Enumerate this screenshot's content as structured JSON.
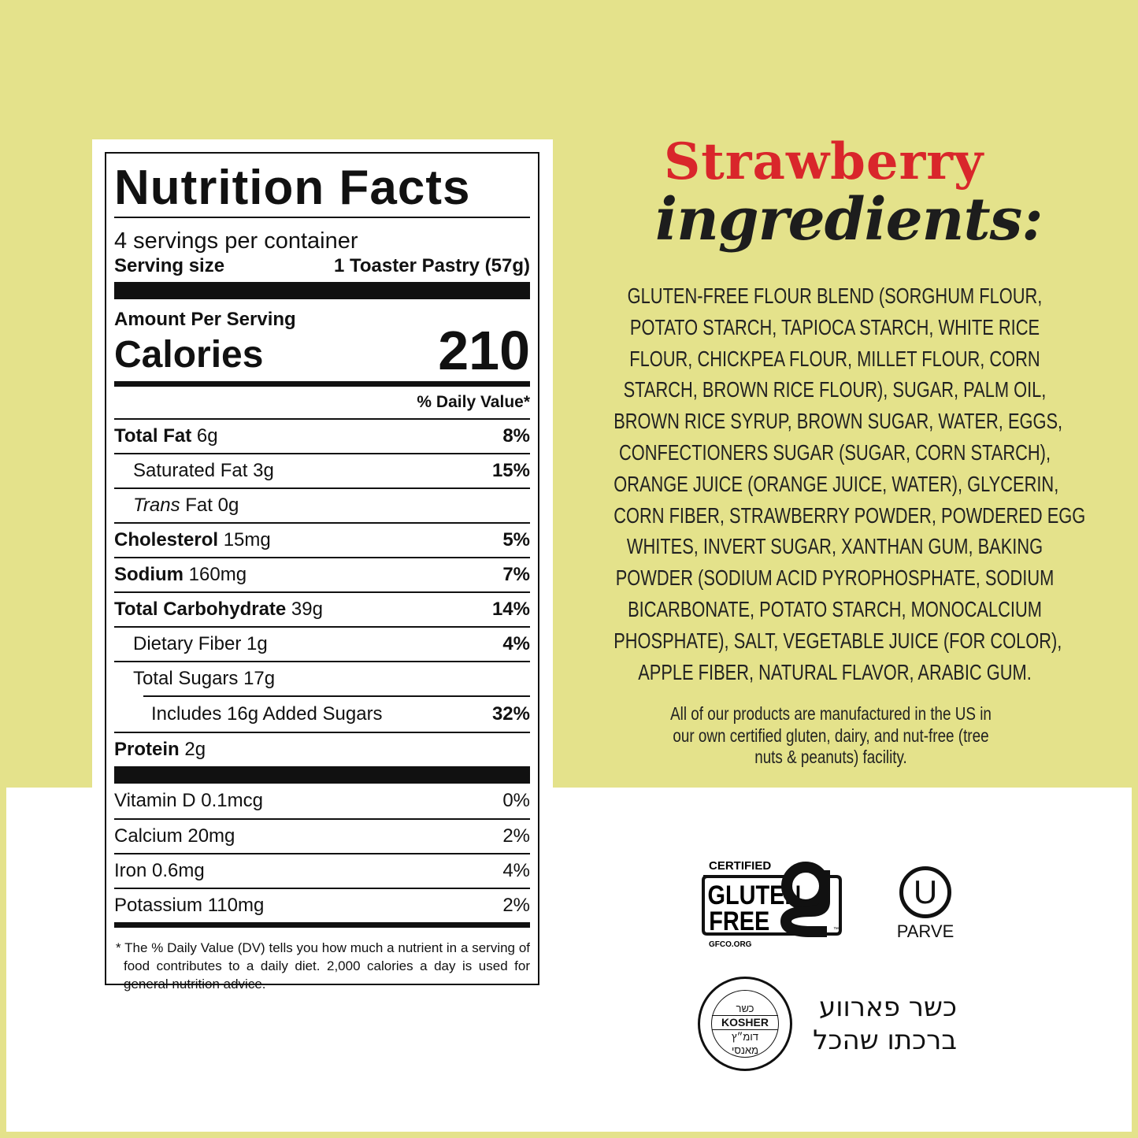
{
  "nutrition": {
    "title": "Nutrition Facts",
    "servings": "4 servings per container",
    "serving_size_label": "Serving size",
    "serving_size_value": "1 Toaster Pastry (57g)",
    "amount_per_serving": "Amount Per Serving",
    "calories_label": "Calories",
    "calories_value": "210",
    "dv_header": "% Daily Value*",
    "rows": [
      {
        "name": "Total Fat",
        "amount": "6g",
        "dv": "8%"
      },
      {
        "name": "Saturated Fat",
        "amount": "3g",
        "dv": "15%"
      },
      {
        "name": "Trans",
        "name2": "Fat 0g",
        "dv": ""
      },
      {
        "name": "Cholesterol",
        "amount": "15mg",
        "dv": "5%"
      },
      {
        "name": "Sodium",
        "amount": "160mg",
        "dv": "7%"
      },
      {
        "name": "Total Carbohydrate",
        "amount": "39g",
        "dv": "14%"
      },
      {
        "name": "Dietary Fiber",
        "amount": "1g",
        "dv": "4%"
      },
      {
        "name": "Total Sugars",
        "amount": "17g",
        "dv": ""
      },
      {
        "name": "Includes 16g Added Sugars",
        "dv": "32%"
      },
      {
        "name": "Protein",
        "amount": "2g",
        "dv": ""
      }
    ],
    "vitamins": [
      {
        "name": "Vitamin D 0.1mcg",
        "dv": "0%"
      },
      {
        "name": "Calcium 20mg",
        "dv": "2%"
      },
      {
        "name": "Iron 0.6mg",
        "dv": "4%"
      },
      {
        "name": "Potassium 110mg",
        "dv": "2%"
      }
    ],
    "footnote": "* The % Daily Value (DV) tells you how much a nutrient in a serving of food contributes to a daily diet. 2,000 calories a day is used for general nutrition advice."
  },
  "ingredients": {
    "title_flavor": "Strawberry",
    "title_word": "ingredients:",
    "lines": [
      "GLUTEN-FREE FLOUR BLEND (SORGHUM FLOUR,",
      "POTATO STARCH, TAPIOCA STARCH, WHITE RICE",
      "FLOUR, CHICKPEA FLOUR, MILLET FLOUR, CORN",
      "STARCH, BROWN RICE FLOUR), SUGAR, PALM OIL,",
      "BROWN RICE SYRUP, BROWN SUGAR, WATER, EGGS,",
      "CONFECTIONERS SUGAR (SUGAR, CORN STARCH),",
      "ORANGE JUICE (ORANGE JUICE, WATER), GLYCERIN,",
      "CORN FIBER, STRAWBERRY POWDER, POWDERED EGG",
      "WHITES, INVERT SUGAR, XANTHAN GUM, BAKING",
      "POWDER (SODIUM ACID PYROPHOSPHATE, SODIUM",
      "BICARBONATE, POTATO STARCH, MONOCALCIUM",
      "PHOSPHATE), SALT, VEGETABLE JUICE (FOR COLOR),",
      "APPLE FIBER, NATURAL FLAVOR, ARABIC GUM."
    ],
    "note_lines": [
      "All of our products are manufactured in the US in",
      "our own certified gluten, dairy, and nut-free (tree",
      "nuts & peanuts) facility."
    ]
  },
  "certifications": {
    "gluten_free": {
      "top": "CERTIFIED",
      "line1": "GLUTEN",
      "line2": "FREE",
      "site": "GFCO.ORG",
      "tm": "™"
    },
    "ou": {
      "symbol": "U",
      "label": "PARVE"
    },
    "kosher_seal": {
      "top": "כשר",
      "middle": "KOSHER",
      "bottom1": "דומ״ץ",
      "bottom2": "מאנסי"
    },
    "hebrew_lines": [
      "כשר פארווע",
      "ברכתו שהכל"
    ]
  },
  "colors": {
    "background": "#e4e28b",
    "flavor_red": "#d9262b",
    "text": "#111111"
  }
}
